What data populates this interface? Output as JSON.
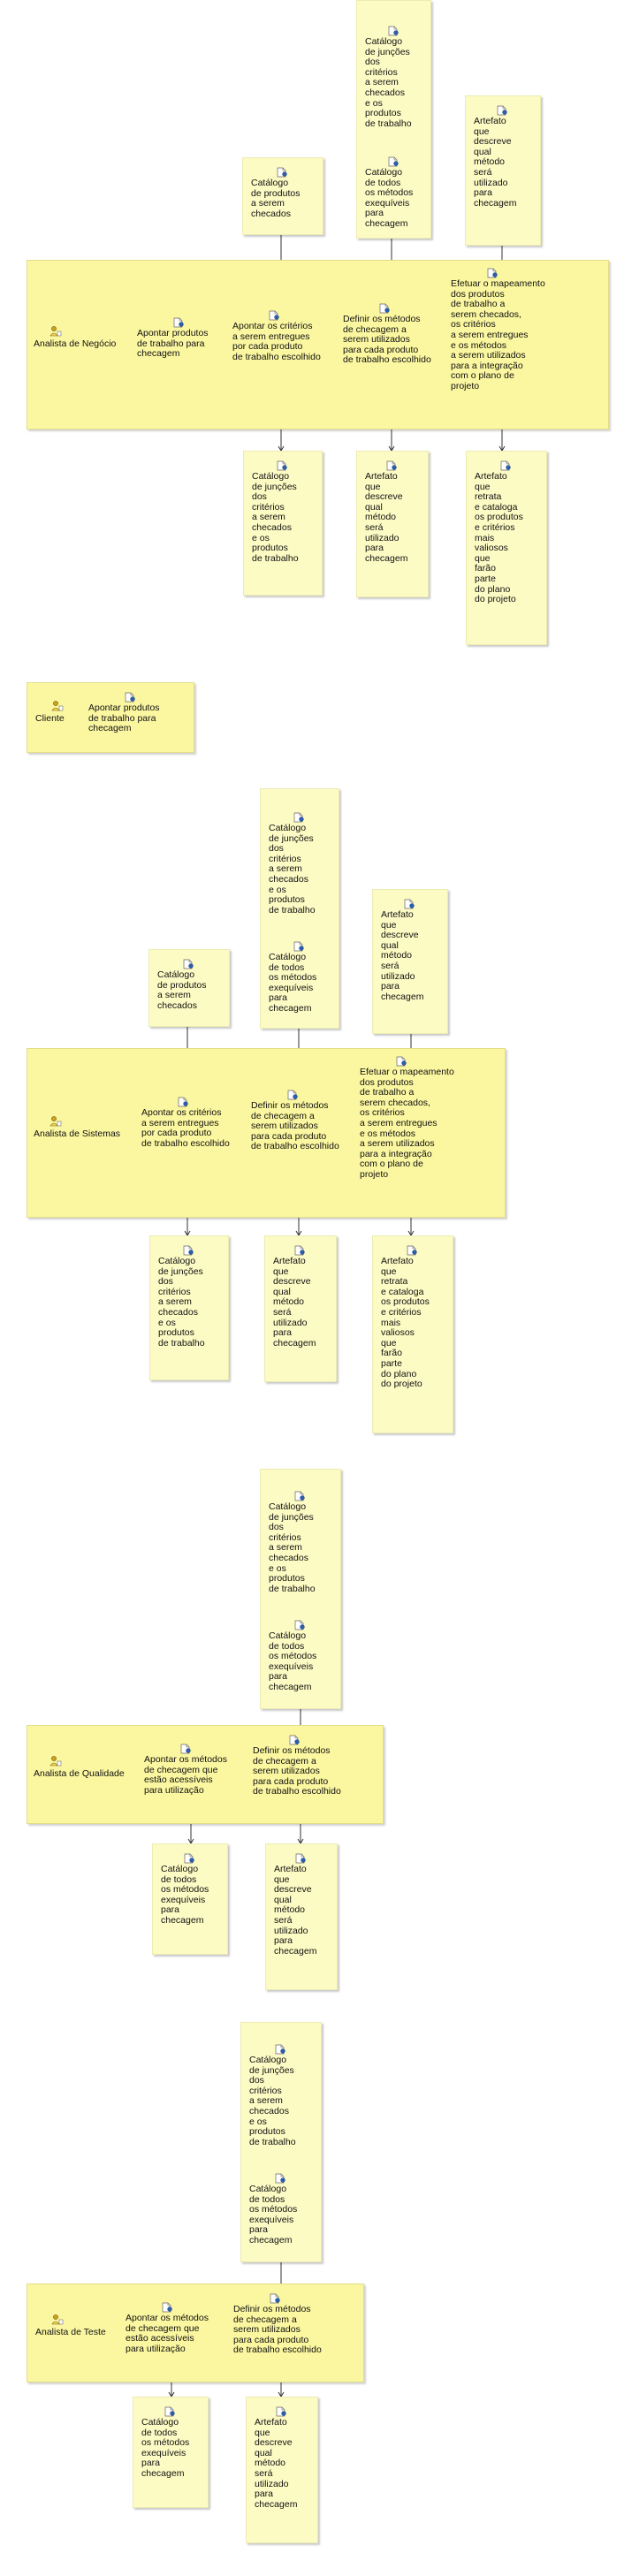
{
  "texts": {
    "cat_juncoes_head": "Catálogo\nde junções\ndos\ncritérios\na serem\nchecados\ne os\nprodutos\nde trabalho",
    "cat_juncoes": "Catálogo\nde junções\ndos\ncritérios\na serem\nchecados\ne os\nprodutos\nde trabalho",
    "cat_metodos": "Catálogo\nde todos\nos métodos\nexequíveis\npara\nchecagem",
    "cat_produtos": "Catálogo\nde produtos\na serem\nchecados",
    "artefato_metodo": "Artefato\nque\ndescreve\nqual\nmétodo\nserá\nutilizado\npara\nchecagem",
    "artefato_catalogo": "Artefato\nque\nretrata\ne cataloga\nos produtos\ne critérios\nmais\nvaliosos\nque\nfarão\nparte\ndo plano\ndo projeto",
    "apontar_produtos": "Apontar produtos\nde trabalho para\nchecagem",
    "apontar_criterios": "Apontar os critérios\na serem entregues\npor cada produto\nde trabalho escolhido",
    "definir_metodos": "Definir os métodos\nde checagem a\nserem utilizados\npara cada produto\nde trabalho escolhido",
    "efetuar_mapeamento": "Efetuar o mapeamento\ndos produtos\nde trabalho a\nserem checados,\nos critérios\na serem entregues\ne os métodos\na serem utilizados\npara a integração\ncom o plano de\nprojeto",
    "apontar_metodos": "Apontar os métodos\nde checagem que\nestão acessíveis\npara utilização"
  },
  "roles": {
    "negocio": "Analista de Negócio",
    "cliente": "Cliente",
    "sistemas": "Analista de Sistemas",
    "qualidade": "Analista de Qualidade",
    "teste": "Analista de Teste"
  },
  "colors": {
    "lane": "#fbf7a0",
    "note": "#fdfbc4",
    "icon_doc": "#ffffff",
    "icon_accent": "#2a5fb0",
    "icon_person": "#c9a21e"
  }
}
